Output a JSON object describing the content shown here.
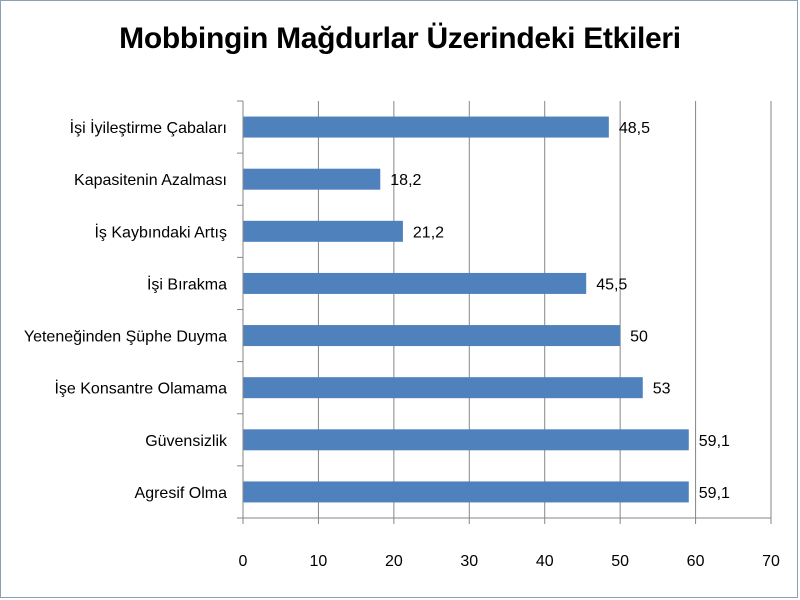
{
  "chart_data": {
    "type": "bar",
    "orientation": "horizontal",
    "title": "Mobbingin Mağdurlar Üzerindeki Etkileri",
    "xlabel": "",
    "ylabel": "",
    "categories": [
      "İşi İyileştirme Çabaları",
      "Kapasitenin Azalması",
      "İş Kaybındaki Artış",
      "İşi Bırakma",
      "Yeteneğinden Şüphe Duyma",
      "İşe Konsantre Olamama",
      "Güvensizlik",
      "Agresif Olma"
    ],
    "values": [
      48.5,
      18.2,
      21.2,
      45.5,
      50,
      53,
      59.1,
      59.1
    ],
    "value_labels": [
      "48,5",
      "18,2",
      "21,2",
      "45,5",
      "50",
      "53",
      "59,1",
      "59,1"
    ],
    "xlim": [
      0,
      70
    ],
    "xticks": [
      0,
      10,
      20,
      30,
      40,
      50,
      60,
      70
    ],
    "grid": "vertical",
    "legend": "none",
    "bar_color": "#4f81bd",
    "grid_color": "#868686"
  }
}
